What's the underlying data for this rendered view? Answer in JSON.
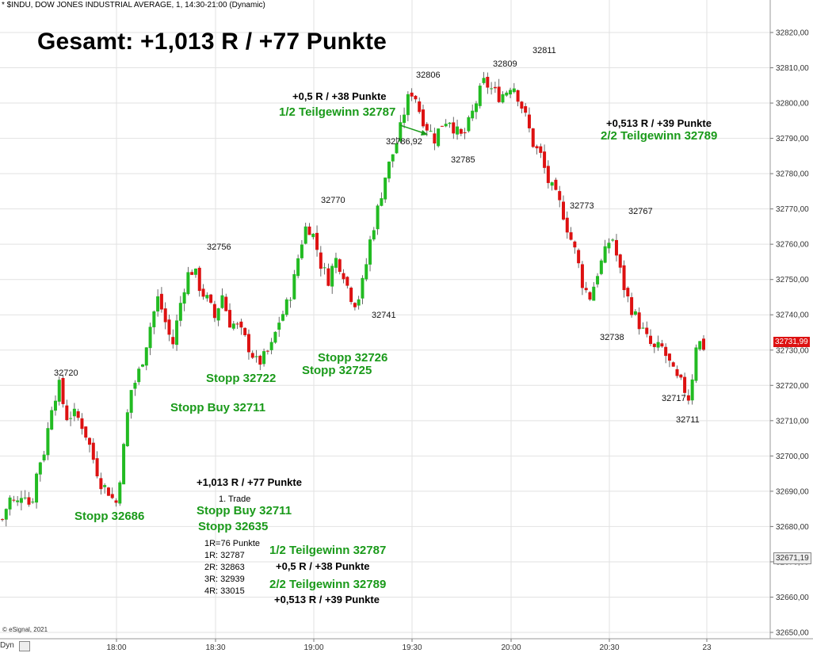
{
  "header": "* $INDU, DOW JONES INDUSTRIAL AVERAGE, 1, 14:30-21:00 (Dynamic)",
  "title": "Gesamt: +1,013 R / +77 Punkte",
  "footer": {
    "copyright": "© eSignal, 2021",
    "mode": "Dyn"
  },
  "colors": {
    "up": "#22bb22",
    "down": "#dd1111",
    "annotation_green": "#1a9a1a",
    "last_price_tag": "#dd1111",
    "grey_tag": "#555555"
  },
  "price_tags": {
    "last": "32731,99",
    "other": "32671,19"
  },
  "price_labels": [
    {
      "text": "32720"
    },
    {
      "text": "32756"
    },
    {
      "text": "32770"
    },
    {
      "text": "32741"
    },
    {
      "text": "32806"
    },
    {
      "text": "32786,92"
    },
    {
      "text": "32785"
    },
    {
      "text": "32809"
    },
    {
      "text": "32811"
    },
    {
      "text": "32773"
    },
    {
      "text": "32767"
    },
    {
      "text": "32738"
    },
    {
      "text": "32717"
    },
    {
      "text": "32711"
    }
  ],
  "annotations": {
    "top_result": "+0,5 R / +38 Punkte",
    "top_target": "1/2 Teilgewinn 32787",
    "right_result": "+0,513 R / +39 Punkte",
    "right_target": "2/2 Teilgewinn 32789",
    "stopp_32726": "Stopp 32726",
    "stopp_32725": "Stopp 32725",
    "stopp_32722": "Stopp 32722",
    "stopp_buy_mid": "Stopp Buy 32711",
    "stopp_32686": "Stopp 32686"
  },
  "summary": {
    "total": "+1,013 R / +77 Punkte",
    "trade": "1. Trade",
    "entry": "Stopp Buy 32711",
    "stop": "Stopp 32635",
    "r_lines": [
      "1R=76 Punkte",
      "1R: 32787",
      "2R: 32863",
      "3R: 32939",
      "4R: 33015"
    ],
    "tp1": "1/2 Teilgewinn 32787",
    "tp1_result": "+0,5 R / +38 Punkte",
    "tp2": "2/2 Teilgewinn 32789",
    "tp2_result": "+0,513 R / +39 Punkte"
  },
  "chart_data": {
    "type": "candlestick",
    "instrument": "$INDU",
    "timeframe": "1 minute",
    "ylim": [
      32650,
      32825
    ],
    "y_ticks": [
      "32650,00",
      "32660,00",
      "32670,00",
      "32680,00",
      "32690,00",
      "32700,00",
      "32710,00",
      "32720,00",
      "32730,00",
      "32740,00",
      "32750,00",
      "32760,00",
      "32770,00",
      "32780,00",
      "32790,00",
      "32800,00",
      "32810,00",
      "32820,00"
    ],
    "x_ticks": [
      "18:00",
      "18:30",
      "19:00",
      "19:30",
      "20:00",
      "20:30",
      "23"
    ],
    "grid": true,
    "close_path": [
      [
        32682,
        32680
      ],
      [
        32688,
        32689
      ],
      [
        32686,
        32686
      ],
      [
        32691,
        32690
      ],
      [
        32685,
        32684
      ],
      [
        32697,
        32697
      ],
      [
        32702,
        32701
      ],
      [
        32715,
        32716
      ],
      [
        32720,
        32719
      ],
      [
        32711,
        32710
      ],
      [
        32712,
        32713
      ],
      [
        32710,
        32709
      ],
      [
        32705,
        32706
      ],
      [
        32698,
        32697
      ],
      [
        32692,
        32693
      ],
      [
        32690,
        32691
      ],
      [
        32686,
        32687
      ],
      [
        32700,
        32701
      ],
      [
        32718,
        32719
      ],
      [
        32722,
        32723
      ],
      [
        32729,
        32730
      ],
      [
        32738,
        32739
      ],
      [
        32745,
        32746
      ],
      [
        32738,
        32737
      ],
      [
        32731,
        32730
      ],
      [
        32742,
        32743
      ],
      [
        32751,
        32752
      ],
      [
        32753,
        32754
      ],
      [
        32747,
        32746
      ],
      [
        32744,
        32743
      ],
      [
        32739,
        32738
      ],
      [
        32746,
        32747
      ],
      [
        32738,
        32737
      ],
      [
        32737,
        32736
      ],
      [
        32734,
        32733
      ],
      [
        32730,
        32729
      ],
      [
        32726,
        32725
      ],
      [
        32728,
        32729
      ],
      [
        32731,
        32730
      ],
      [
        32738,
        32739
      ],
      [
        32742,
        32743
      ],
      [
        32748,
        32749
      ],
      [
        32759,
        32760
      ],
      [
        32766,
        32767
      ],
      [
        32762,
        32761
      ],
      [
        32754,
        32753
      ],
      [
        32750,
        32749
      ],
      [
        32756,
        32757
      ],
      [
        32753,
        32752
      ],
      [
        32746,
        32745
      ],
      [
        32743,
        32742
      ],
      [
        32750,
        32751
      ],
      [
        32762,
        32763
      ],
      [
        32770,
        32771
      ],
      [
        32779,
        32780
      ],
      [
        32785,
        32784
      ],
      [
        32791,
        32792
      ],
      [
        32800,
        32801
      ],
      [
        32804,
        32805
      ],
      [
        32797,
        32796
      ],
      [
        32793,
        32792
      ],
      [
        32790,
        32789
      ],
      [
        32794,
        32795
      ],
      [
        32796,
        32797
      ],
      [
        32792,
        32791
      ],
      [
        32790,
        32789
      ],
      [
        32795,
        32796
      ],
      [
        32801,
        32802
      ],
      [
        32806,
        32807
      ],
      [
        32804,
        32805
      ],
      [
        32802,
        32801
      ],
      [
        32803,
        32804
      ],
      [
        32806,
        32807
      ],
      [
        32801,
        32800
      ],
      [
        32795,
        32794
      ],
      [
        32788,
        32787
      ],
      [
        32785,
        32784
      ],
      [
        32778,
        32777
      ],
      [
        32774,
        32773
      ],
      [
        32770,
        32769
      ],
      [
        32763,
        32762
      ],
      [
        32757,
        32756
      ],
      [
        32748,
        32747
      ],
      [
        32745,
        32744
      ],
      [
        32752,
        32753
      ],
      [
        32757,
        32758
      ],
      [
        32763,
        32764
      ],
      [
        32754,
        32753
      ],
      [
        32746,
        32745
      ],
      [
        32741,
        32740
      ],
      [
        32737,
        32736
      ],
      [
        32733,
        32732
      ],
      [
        32730,
        32729
      ],
      [
        32731,
        32732
      ],
      [
        32727,
        32726
      ],
      [
        32722,
        32721
      ],
      [
        32720,
        32719
      ],
      [
        32716,
        32715
      ],
      [
        32733,
        32734
      ],
      [
        32731,
        32732
      ]
    ]
  }
}
